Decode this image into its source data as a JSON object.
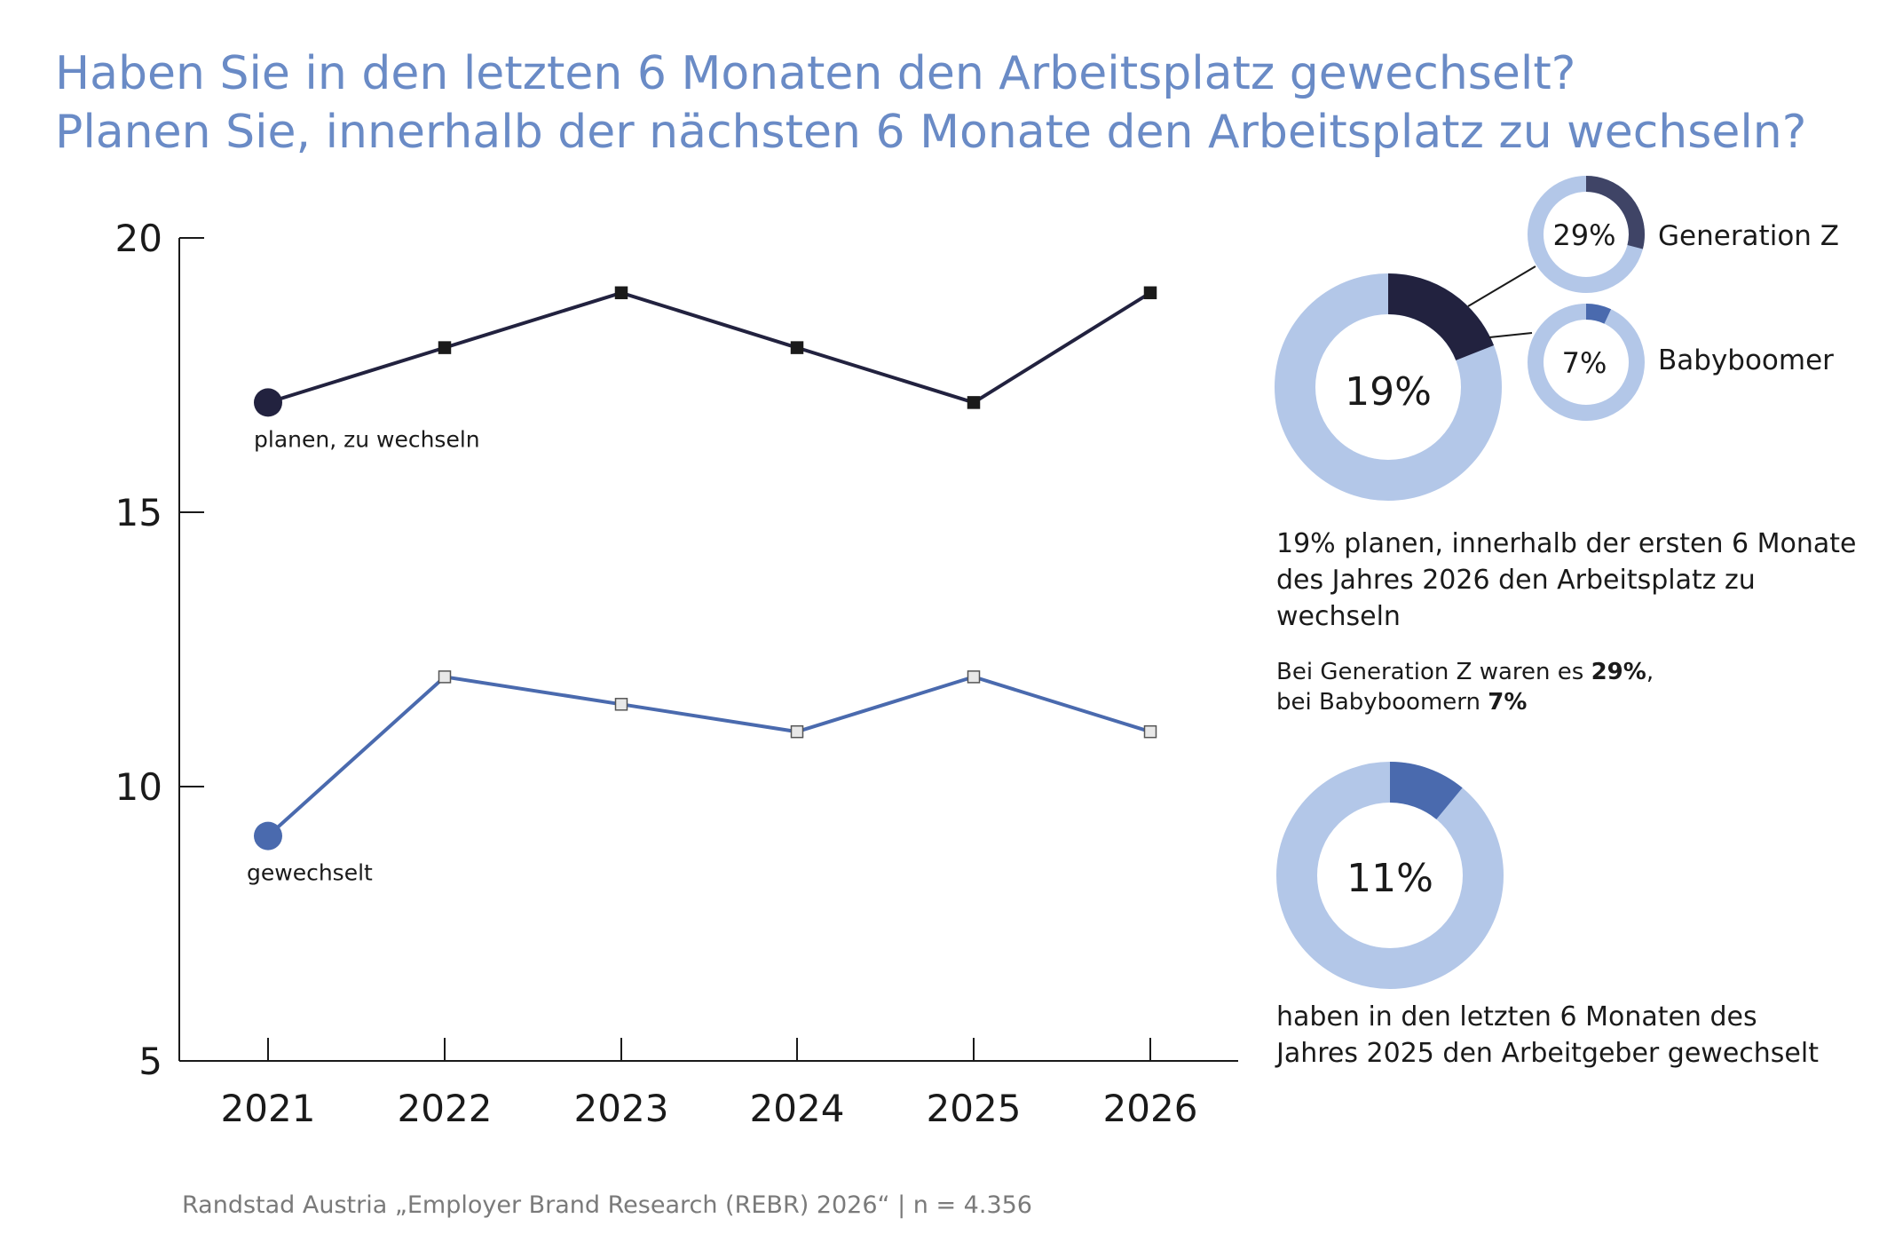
{
  "title": {
    "line1": "Haben Sie in den letzten 6 Monaten den Arbeitsplatz gewechselt?",
    "line2": "Planen Sie, innerhalb der nächsten 6 Monate den Arbeitsplatz zu wechseln?"
  },
  "colors": {
    "title": "#6a8bc6",
    "plan_series": "#22223f",
    "changed_series": "#4a6aae",
    "donut_track": "#b3c7e8",
    "genz_segment": "#3f4466",
    "boomer_segment": "#4a6aae"
  },
  "chart_data": {
    "type": "line",
    "x": [
      "2021",
      "2022",
      "2023",
      "2024",
      "2025",
      "2026"
    ],
    "ylim": [
      5,
      20
    ],
    "yticks": [
      "5",
      "10",
      "15",
      "20"
    ],
    "series": [
      {
        "name": "planen, zu wechseln",
        "values": [
          17,
          18,
          19,
          18,
          17,
          19
        ]
      },
      {
        "name": "gewechselt",
        "values": [
          9.1,
          12,
          11.5,
          11,
          12,
          11
        ]
      }
    ],
    "grid": false,
    "legend": "inline labels at series start"
  },
  "donuts": {
    "plan": {
      "value": 19,
      "label": "19%"
    },
    "genz": {
      "value": 29,
      "label": "29%",
      "name": "Generation Z"
    },
    "boomer": {
      "value": 7,
      "label": "7%",
      "name": "Babyboomer"
    },
    "changed": {
      "value": 11,
      "label": "11%"
    }
  },
  "texts": {
    "plan_desc": [
      "19% planen, innerhalb der ersten 6 Monate",
      "des Jahres 2026 den Arbeitsplatz zu",
      "wechseln"
    ],
    "note": {
      "line1_pre": "Bei Generation Z waren es ",
      "line1_bold": "29%",
      "line1_post": ",",
      "line2_pre": "bei Babyboomern ",
      "line2_bold": "7%"
    },
    "changed_desc": [
      "haben in den letzten 6 Monaten des",
      "Jahres 2025 den Arbeitgeber gewechselt"
    ]
  },
  "source": "Randstad Austria „Employer Brand Research (REBR) 2026“ | n = 4.356"
}
